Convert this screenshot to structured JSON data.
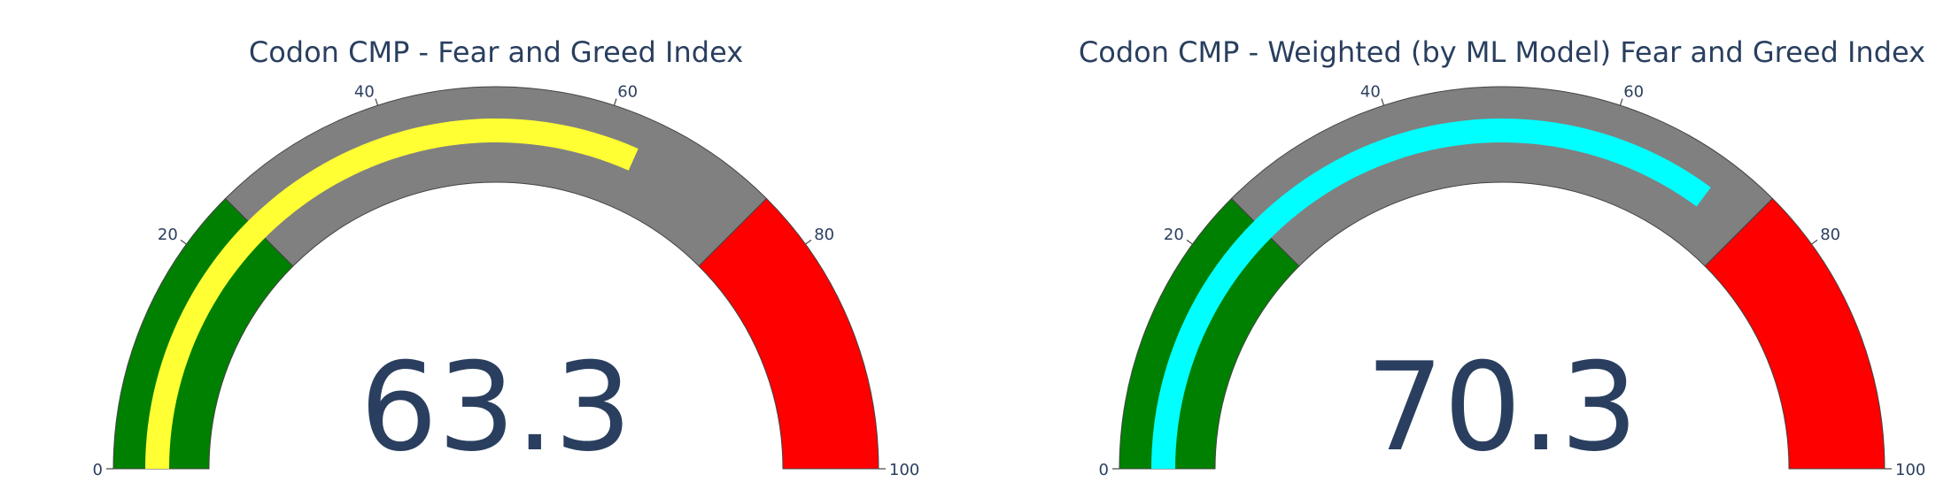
{
  "chart_data": [
    {
      "type": "gauge",
      "title": "Codon CMP - Fear and Greed Index",
      "value": 63.3,
      "value_label": "63.3",
      "range": [
        0,
        100
      ],
      "tick_labels": [
        "0",
        "20",
        "40",
        "60",
        "80",
        "100"
      ],
      "bar_color": "#ffff33",
      "steps": [
        {
          "range": [
            0,
            25
          ],
          "color": "#008000"
        },
        {
          "range": [
            25,
            75
          ],
          "color": "#808080"
        },
        {
          "range": [
            75,
            100
          ],
          "color": "#ff0000"
        }
      ]
    },
    {
      "type": "gauge",
      "title": "Codon CMP - Weighted (by ML Model) Fear and Greed Index",
      "value": 70.3,
      "value_label": "70.3",
      "range": [
        0,
        100
      ],
      "tick_labels": [
        "0",
        "20",
        "40",
        "60",
        "80",
        "100"
      ],
      "bar_color": "#00ffff",
      "steps": [
        {
          "range": [
            0,
            25
          ],
          "color": "#008000"
        },
        {
          "range": [
            25,
            75
          ],
          "color": "#808080"
        },
        {
          "range": [
            75,
            100
          ],
          "color": "#ff0000"
        }
      ]
    }
  ],
  "colors": {
    "text": "#2a3f5f",
    "outline": "#444444"
  }
}
